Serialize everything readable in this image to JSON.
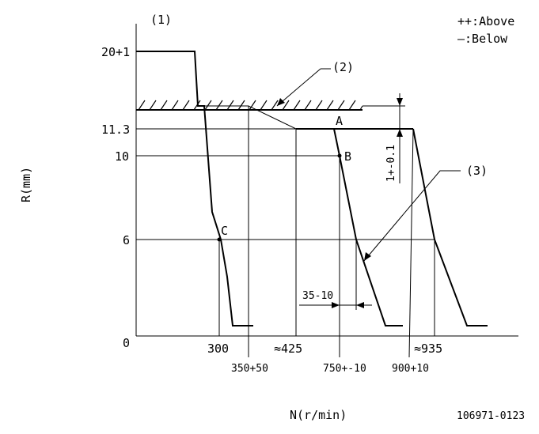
{
  "labels": {
    "panel_tag": "(1)",
    "legend_above": "++:Above",
    "legend_below": "—:Below",
    "y_axis_label": "R(mm)",
    "x_axis_label": "N(r/min)",
    "drawing_number": "106971-0123",
    "callout_2": "(2)",
    "callout_3": "(3)",
    "point_a": "A",
    "point_b": "B",
    "point_c": "C",
    "rack_tolerance": "1+-0.1",
    "speed_offset": "35-10"
  },
  "y_ticks": [
    "20+1",
    "11.3",
    "10",
    "6",
    "0"
  ],
  "x_ticks": {
    "t300": "300",
    "t350": "350+50",
    "t425": "≈425",
    "t750": "750+-10",
    "t900": "900+10",
    "t935": "≈935"
  }
}
